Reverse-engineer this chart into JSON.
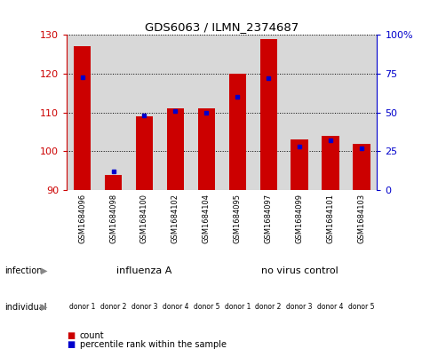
{
  "title": "GDS6063 / ILMN_2374687",
  "samples": [
    "GSM1684096",
    "GSM1684098",
    "GSM1684100",
    "GSM1684102",
    "GSM1684104",
    "GSM1684095",
    "GSM1684097",
    "GSM1684099",
    "GSM1684101",
    "GSM1684103"
  ],
  "count_values": [
    127,
    94,
    109,
    111,
    111,
    120,
    129,
    103,
    104,
    102
  ],
  "percentile_values": [
    73,
    12,
    48,
    51,
    50,
    60,
    72,
    28,
    32,
    27
  ],
  "ylim_left": [
    90,
    130
  ],
  "ylim_right": [
    0,
    100
  ],
  "yticks_left": [
    90,
    100,
    110,
    120,
    130
  ],
  "yticks_right": [
    0,
    25,
    50,
    75,
    100
  ],
  "bar_color": "#cc0000",
  "dot_color": "#0000cc",
  "background_color": "#ffffff",
  "plot_bg_color": "#d8d8d8",
  "sample_cell_color": "#c8c8c8",
  "left_label_color": "#cc0000",
  "right_label_color": "#0000cc",
  "inf_a_color": "#c0f0a0",
  "no_virus_color": "#40d040",
  "indiv_colors_odd": "#f0a0f0",
  "indiv_colors_even": "#e060e0",
  "indiv_color1": "#f8e8f8",
  "indiv_color2": "#f0a0f0",
  "indiv_color3": "#f8d8f8",
  "indiv_color4": "#f0a0f0",
  "indiv_color5": "#e060e0",
  "indiv_color6": "#f8f0f8",
  "indiv_color7": "#f0a0f0",
  "indiv_color8": "#f8d8f8",
  "indiv_color9": "#f0a0f0",
  "indiv_color10": "#f0a0f0",
  "individual_labels": [
    "donor 1",
    "donor 2",
    "donor 3",
    "donor 4",
    "donor 5",
    "donor 1",
    "donor 2",
    "donor 3",
    "donor 4",
    "donor 5"
  ]
}
